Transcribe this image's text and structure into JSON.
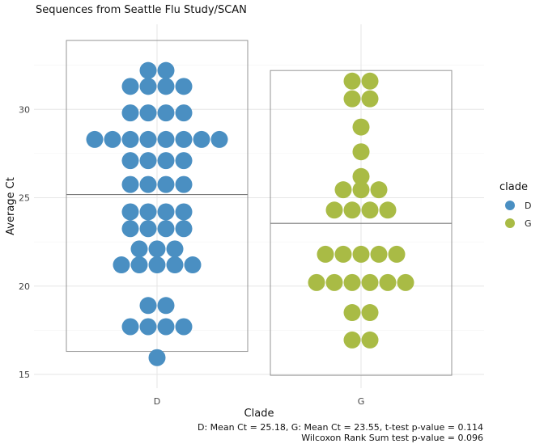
{
  "chart_data": {
    "type": "dotplot-boxplot",
    "title": "Sequences from Seattle Flu Study/SCAN",
    "xlabel": "Clade",
    "ylabel": "Average Ct",
    "categories": [
      "D",
      "G"
    ],
    "ylim": [
      14.5,
      34.5
    ],
    "yticks": [
      15,
      20,
      25,
      30
    ],
    "grid": true,
    "colors": {
      "D": "#4a8fc2",
      "G": "#a9bb45"
    },
    "legend": {
      "title": "clade",
      "entries": [
        "D",
        "G"
      ],
      "position": "right"
    },
    "boxes": [
      {
        "clade": "D",
        "min": 16.3,
        "mean": 25.18,
        "max": 33.9
      },
      {
        "clade": "G",
        "min": 14.95,
        "mean": 23.55,
        "max": 32.2
      }
    ],
    "points": {
      "D": [
        {
          "y": 32.2,
          "n": 2
        },
        {
          "y": 31.3,
          "n": 4
        },
        {
          "y": 29.8,
          "n": 4
        },
        {
          "y": 28.3,
          "n": 8
        },
        {
          "y": 27.1,
          "n": 4
        },
        {
          "y": 25.75,
          "n": 4
        },
        {
          "y": 24.2,
          "n": 4
        },
        {
          "y": 23.25,
          "n": 4
        },
        {
          "y": 22.1,
          "n": 3
        },
        {
          "y": 21.2,
          "n": 5
        },
        {
          "y": 18.9,
          "n": 2
        },
        {
          "y": 17.7,
          "n": 4
        },
        {
          "y": 15.95,
          "n": 1
        }
      ],
      "G": [
        {
          "y": 31.6,
          "n": 2
        },
        {
          "y": 30.6,
          "n": 2
        },
        {
          "y": 29.0,
          "n": 1
        },
        {
          "y": 27.6,
          "n": 1
        },
        {
          "y": 26.2,
          "n": 1
        },
        {
          "y": 25.45,
          "n": 3
        },
        {
          "y": 24.3,
          "n": 4
        },
        {
          "y": 21.8,
          "n": 5
        },
        {
          "y": 20.2,
          "n": 6
        },
        {
          "y": 18.5,
          "n": 2
        },
        {
          "y": 16.95,
          "n": 2
        }
      ]
    },
    "caption": [
      "D: Mean Ct = 25.18,  G: Mean Ct = 23.55,  t-test p-value = 0.114",
      "Wilcoxon Rank Sum test p-value = 0.096"
    ]
  }
}
